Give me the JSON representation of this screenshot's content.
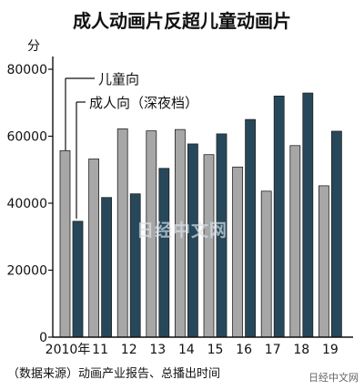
{
  "chart_data": {
    "type": "bar",
    "title": "成人动画片反超儿童动画片",
    "ylabel": "分",
    "ylim": [
      0,
      80000
    ],
    "yticks": [
      0,
      20000,
      40000,
      60000,
      80000
    ],
    "categories": [
      "2010年",
      "11",
      "12",
      "13",
      "14",
      "15",
      "16",
      "17",
      "18",
      "19"
    ],
    "series": [
      {
        "name": "儿童向",
        "color": "#a7a7a7",
        "values": [
          55700,
          53200,
          62200,
          61600,
          62000,
          54500,
          50800,
          43600,
          57200,
          45200
        ]
      },
      {
        "name": "成人向（深夜档）",
        "color": "#27485a",
        "values": [
          34600,
          41700,
          42800,
          50400,
          57700,
          60700,
          65000,
          72000,
          72900,
          61500
        ]
      }
    ],
    "source": "（数据来源）动画产业报告、总播出时间",
    "legend_position": "top-left",
    "grid": false
  },
  "watermarks": {
    "center": "日经中文网",
    "corner": "日经中文网"
  }
}
